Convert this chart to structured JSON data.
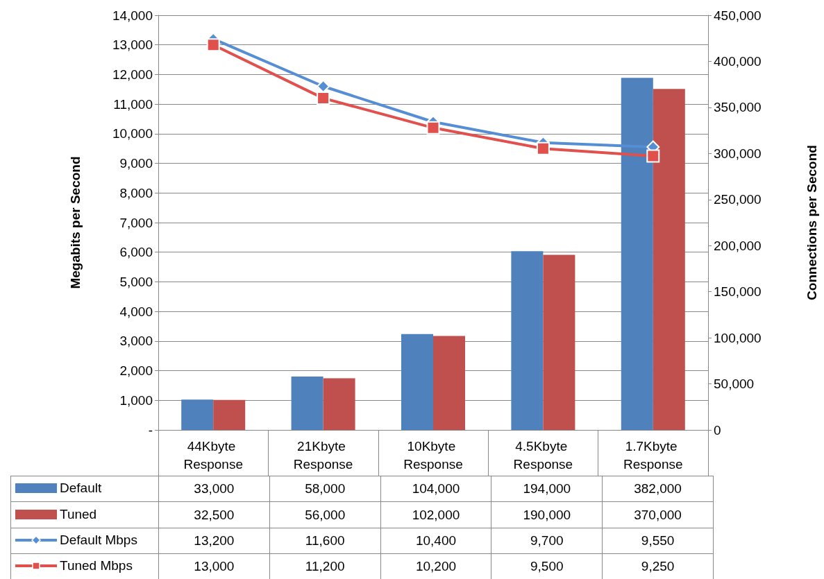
{
  "chart_data": {
    "type": "bar",
    "ylabel": "Megabits per Second",
    "y2label": "Connections per Second",
    "categories": [
      "44Kbyte Response",
      "21Kbyte Response",
      "10Kbyte Response",
      "4.5Kbyte Response",
      "1.7Kbyte Response"
    ],
    "series": [
      {
        "name": "Default",
        "axis": "y2",
        "color": "#4f81bd",
        "values": [
          33000,
          58000,
          104000,
          194000,
          382000
        ],
        "value_labels": [
          "33,000",
          "58,000",
          "104,000",
          "194,000",
          "382,000"
        ]
      },
      {
        "name": "Tuned",
        "axis": "y2",
        "color": "#c0504d",
        "values": [
          32500,
          56000,
          102000,
          190000,
          370000
        ],
        "value_labels": [
          "32,500",
          "56,000",
          "102,000",
          "190,000",
          "370,000"
        ]
      },
      {
        "name": "Default Mbps",
        "type": "line",
        "marker": "diamond",
        "color": "#558ed5",
        "values": [
          13200,
          11600,
          10400,
          9700,
          9550
        ],
        "value_labels": [
          "13,200",
          "11,600",
          "10,400",
          "9,700",
          "9,550"
        ]
      },
      {
        "name": "Tuned Mbps",
        "type": "line",
        "marker": "square",
        "color": "#e0504d",
        "values": [
          13000,
          11200,
          10200,
          9500,
          9250
        ],
        "value_labels": [
          "13,000",
          "11,200",
          "10,200",
          "9,500",
          "9,250"
        ]
      }
    ],
    "ylim": [
      0,
      14000
    ],
    "yticks": [
      {
        "value": 0,
        "label": "-"
      },
      {
        "value": 1000,
        "label": "1,000"
      },
      {
        "value": 2000,
        "label": "2,000"
      },
      {
        "value": 3000,
        "label": "3,000"
      },
      {
        "value": 4000,
        "label": "4,000"
      },
      {
        "value": 5000,
        "label": "5,000"
      },
      {
        "value": 6000,
        "label": "6,000"
      },
      {
        "value": 7000,
        "label": "7,000"
      },
      {
        "value": 8000,
        "label": "8,000"
      },
      {
        "value": 9000,
        "label": "9,000"
      },
      {
        "value": 10000,
        "label": "10,000"
      },
      {
        "value": 11000,
        "label": "11,000"
      },
      {
        "value": 12000,
        "label": "12,000"
      },
      {
        "value": 13000,
        "label": "13,000"
      },
      {
        "value": 14000,
        "label": "14,000"
      }
    ],
    "y2lim": [
      0,
      450000
    ],
    "y2ticks": [
      0,
      {
        "value": 50000,
        "label": "50,000"
      },
      {
        "value": 100000,
        "label": "100,000"
      },
      {
        "value": 150000,
        "label": "150,000"
      },
      {
        "value": 200000,
        "label": "200,000"
      },
      {
        "value": 250000,
        "label": "250,000"
      },
      {
        "value": 300000,
        "label": "300,000"
      },
      {
        "value": 350000,
        "label": "350,000"
      },
      {
        "value": 400000,
        "label": "400,000"
      },
      {
        "value": 450000,
        "label": "450,000"
      }
    ],
    "grid": "y",
    "legend": "bottom"
  }
}
